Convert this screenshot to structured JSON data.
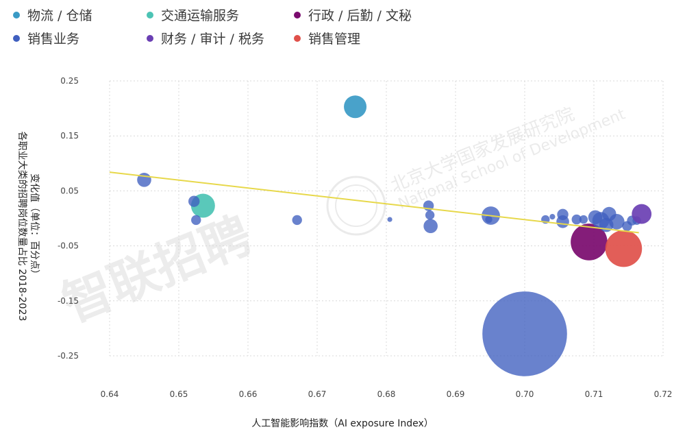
{
  "colors": {
    "logistics": "#3a9ac5",
    "transport": "#4cc3b4",
    "admin": "#7a0a6e",
    "sales": "#3f5fbf",
    "finance": "#6a3fb3",
    "sales_mgmt": "#e0504a",
    "trendline": "#e7d84a",
    "grid": "#d8d8d8"
  },
  "watermarks": {
    "left": "智联招聘",
    "right_cn": "北京大学国家发展研究院",
    "right_en": "National School of Development"
  },
  "chart_data": {
    "type": "scatter",
    "xlabel": "人工智能影响指数（AI exposure Index）",
    "ylabel_outer": "各职业大类的招聘岗位数量占比 2018-2023",
    "ylabel_inner": "变化值（单位：百分点）",
    "xlim": [
      0.64,
      0.72
    ],
    "ylim": [
      -0.25,
      0.25
    ],
    "x_ticks": [
      "0.64",
      "0.65",
      "0.66",
      "0.67",
      "0.68",
      "0.69",
      "0.70",
      "0.71",
      "0.72"
    ],
    "y_ticks": [
      "0.25",
      "0.15",
      "0.05",
      "-0.05",
      "-0.15",
      "-0.25"
    ],
    "grid": true,
    "legend_position": "top",
    "series": [
      {
        "key": "logistics",
        "name": "物流 / 仓储",
        "points": [
          {
            "x": 0.6755,
            "y": 0.203,
            "size": 1.6
          }
        ]
      },
      {
        "key": "transport",
        "name": "交通运输服务",
        "points": [
          {
            "x": 0.6535,
            "y": 0.023,
            "size": 1.7
          }
        ]
      },
      {
        "key": "admin",
        "name": "行政 / 后勤 / 文秘",
        "points": [
          {
            "x": 0.7093,
            "y": -0.043,
            "size": 2.6
          }
        ]
      },
      {
        "key": "sales",
        "name": "销售业务",
        "points": [
          {
            "x": 0.7,
            "y": -0.21,
            "size": 6.0
          },
          {
            "x": 0.645,
            "y": 0.07,
            "size": 1.0
          },
          {
            "x": 0.6522,
            "y": 0.031,
            "size": 0.8
          },
          {
            "x": 0.6525,
            "y": -0.003,
            "size": 0.7
          },
          {
            "x": 0.6671,
            "y": -0.003,
            "size": 0.7
          },
          {
            "x": 0.6805,
            "y": -0.002,
            "size": 0.35
          },
          {
            "x": 0.6861,
            "y": 0.023,
            "size": 0.75
          },
          {
            "x": 0.6863,
            "y": 0.006,
            "size": 0.65
          },
          {
            "x": 0.6864,
            "y": -0.014,
            "size": 1.0
          },
          {
            "x": 0.6951,
            "y": 0.005,
            "size": 1.3
          },
          {
            "x": 0.6948,
            "y": -0.002,
            "size": 0.5
          },
          {
            "x": 0.703,
            "y": -0.002,
            "size": 0.6
          },
          {
            "x": 0.704,
            "y": 0.003,
            "size": 0.4
          },
          {
            "x": 0.7055,
            "y": 0.007,
            "size": 0.8
          },
          {
            "x": 0.7055,
            "y": -0.006,
            "size": 0.9
          },
          {
            "x": 0.7075,
            "y": -0.002,
            "size": 0.7
          },
          {
            "x": 0.7085,
            "y": -0.002,
            "size": 0.6
          },
          {
            "x": 0.7102,
            "y": 0.002,
            "size": 1.0
          },
          {
            "x": 0.711,
            "y": -0.004,
            "size": 1.2
          },
          {
            "x": 0.7122,
            "y": 0.008,
            "size": 1.0
          },
          {
            "x": 0.7118,
            "y": -0.012,
            "size": 1.0
          },
          {
            "x": 0.7133,
            "y": -0.006,
            "size": 1.1
          },
          {
            "x": 0.7148,
            "y": -0.014,
            "size": 0.7
          },
          {
            "x": 0.7155,
            "y": -0.004,
            "size": 0.7
          },
          {
            "x": 0.7162,
            "y": -0.004,
            "size": 0.6
          }
        ]
      },
      {
        "key": "finance",
        "name": "财务 / 审计 / 税务",
        "points": [
          {
            "x": 0.7169,
            "y": 0.008,
            "size": 1.4
          }
        ]
      },
      {
        "key": "sales_mgmt",
        "name": "销售管理",
        "points": [
          {
            "x": 0.7143,
            "y": -0.055,
            "size": 2.6
          }
        ]
      }
    ],
    "trendline": {
      "x": [
        0.64,
        0.7165
      ],
      "y": [
        0.084,
        -0.026
      ]
    }
  }
}
